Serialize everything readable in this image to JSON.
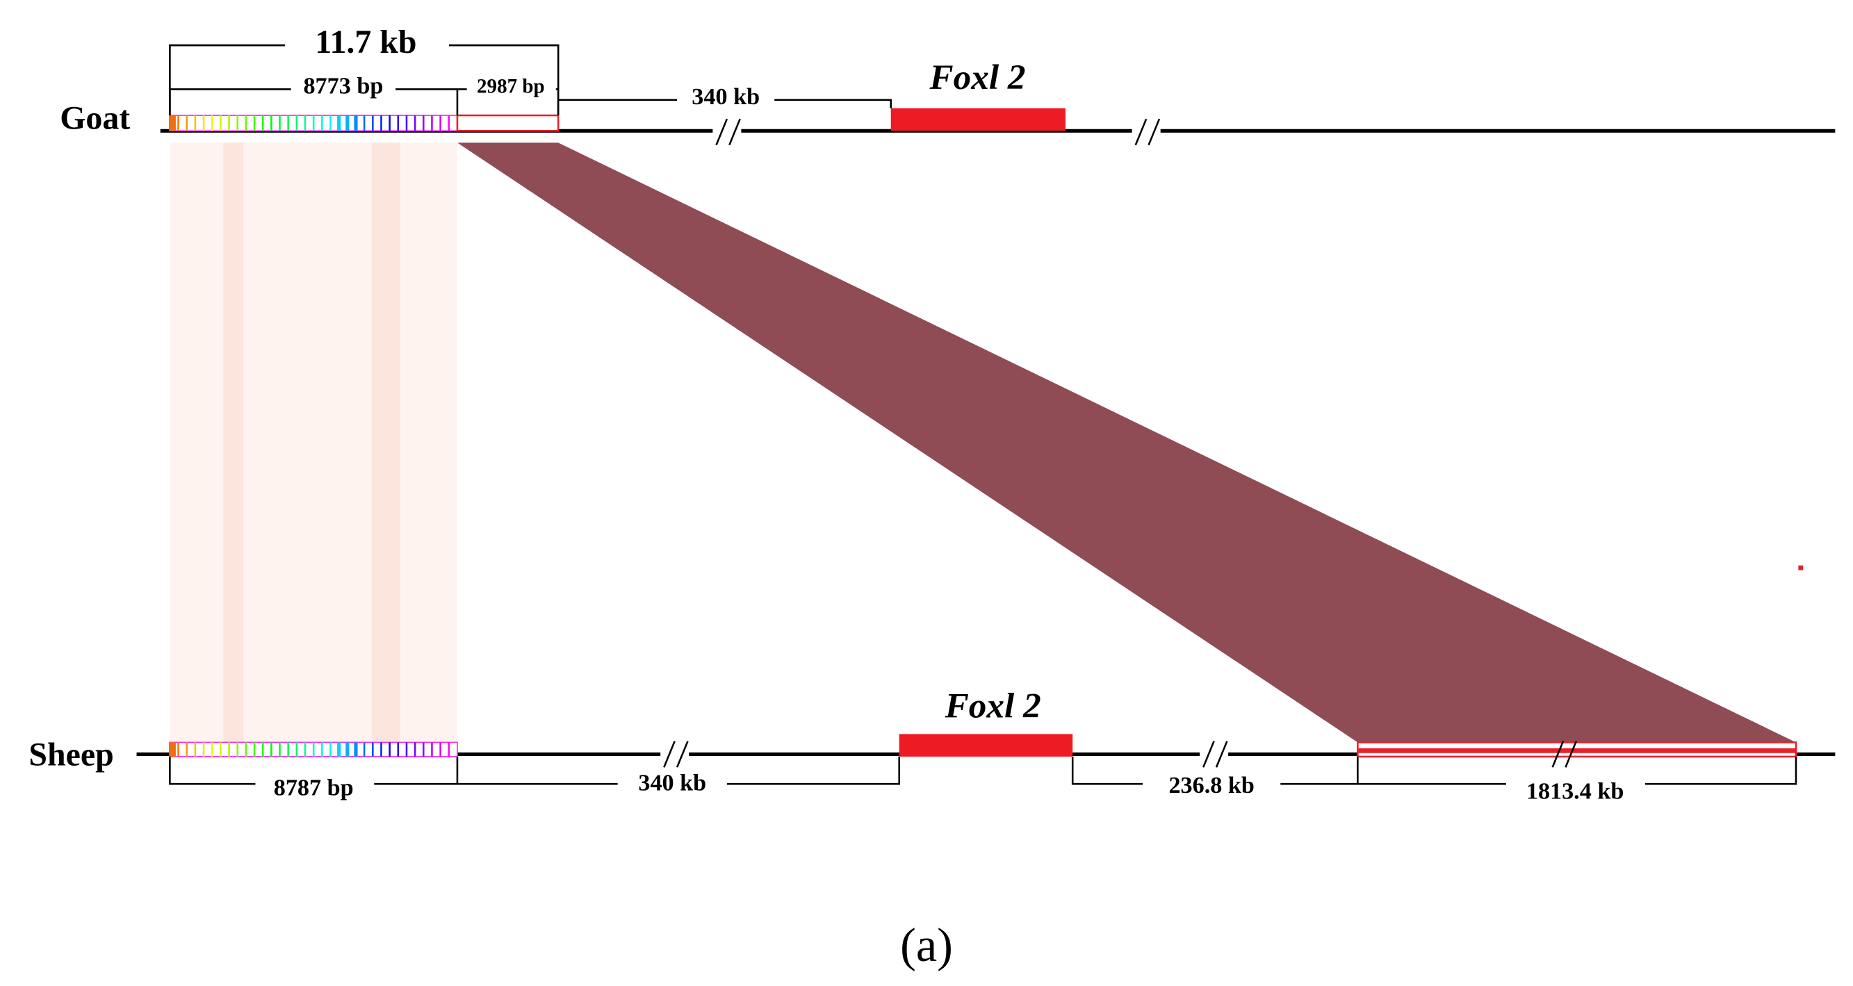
{
  "goat": {
    "label": "Goat",
    "total": "11.7 kb",
    "segment_left": "8773 bp",
    "segment_right": "2987 bp",
    "gap": "340 kb",
    "gene": "Foxl 2"
  },
  "sheep": {
    "label": "Sheep",
    "segment_left": "8787 bp",
    "gap": "340 kb",
    "gene": "Foxl 2",
    "gap_right": "236.8 kb",
    "segment_far": "1813.4 kb"
  },
  "caption": "(a)"
}
